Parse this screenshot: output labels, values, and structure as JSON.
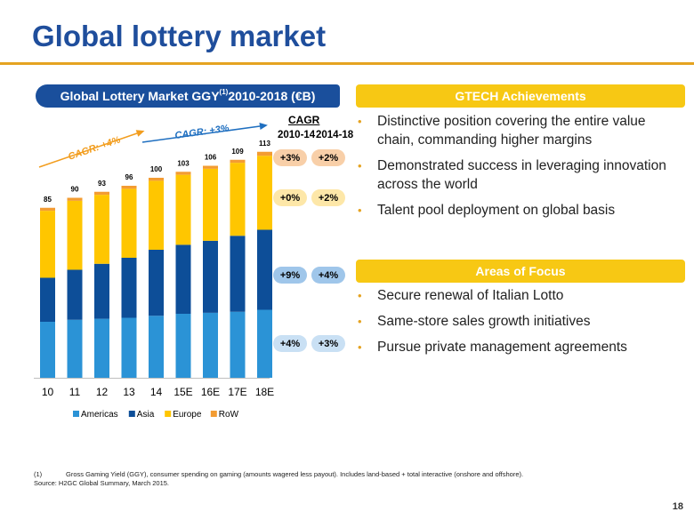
{
  "title": "Global lottery market",
  "left_header": {
    "main": "Global Lottery Market GGY",
    "sup": "(1)",
    "tail": " 2010-2018 (€B)"
  },
  "chart_data": {
    "type": "bar",
    "stacked": true,
    "categories": [
      "10",
      "11",
      "12",
      "13",
      "14",
      "15E",
      "16E",
      "17E",
      "18E"
    ],
    "totals": [
      85,
      90,
      93,
      96,
      100,
      103,
      106,
      109,
      113
    ],
    "series": [
      {
        "name": "Americas",
        "color": "#2b93d6",
        "values": [
          28,
          29,
          29.5,
          30,
          31,
          32,
          32.5,
          33,
          34
        ]
      },
      {
        "name": "Asia",
        "color": "#0d4e98",
        "values": [
          22,
          25,
          27.5,
          30,
          33,
          34.5,
          36,
          38,
          40
        ]
      },
      {
        "name": "Europe",
        "color": "#ffc600",
        "values": [
          33.5,
          34.5,
          34.5,
          34.5,
          34.5,
          35,
          36,
          36.5,
          37
        ]
      },
      {
        "name": "RoW",
        "color": "#f39c32",
        "values": [
          1.5,
          1.5,
          1.5,
          1.5,
          1.5,
          1.5,
          1.5,
          1.5,
          2
        ]
      }
    ],
    "ylim": [
      0,
      120
    ],
    "annotations": [
      {
        "label": "CAGR: +4%",
        "color": "#f29d1e"
      },
      {
        "label": "CAGR: +3%",
        "color": "#1f6fc0"
      }
    ]
  },
  "cagr": {
    "title": "CAGR",
    "columns": [
      "2010-14",
      "2014-18"
    ],
    "rows": [
      {
        "series": "RoW",
        "values": [
          "+3%",
          "+2%"
        ]
      },
      {
        "series": "Europe",
        "values": [
          "+0%",
          "+2%"
        ]
      },
      {
        "series": "Asia",
        "values": [
          "+9%",
          "+4%"
        ]
      },
      {
        "series": "Americas",
        "values": [
          "+4%",
          "+3%"
        ]
      }
    ],
    "colors": {
      "row": "#f8cfa8",
      "europe": "#fde7a8",
      "asia": "#9fc6ea",
      "americas": "#c9e0f4"
    }
  },
  "gtech": {
    "header": "GTECH Achievements",
    "bullets": [
      "Distinctive position covering the entire value chain, commanding higher margins",
      "Demonstrated success in leveraging innovation across the world",
      "Talent pool deployment on global basis"
    ]
  },
  "focus": {
    "header": "Areas of Focus",
    "bullets": [
      "Secure renewal of Italian Lotto",
      "Same-store sales growth initiatives",
      "Pursue private management agreements"
    ]
  },
  "footnote": {
    "num": "(1)",
    "text": "Gross Gaming Yield (GGY), consumer spending on gaming (amounts wagered less payout). Includes land-based + total interactive (onshore and offshore).",
    "source": "Source: H2GC Global Summary, March 2015."
  },
  "page_number": "18",
  "bullet_glyph": "•"
}
